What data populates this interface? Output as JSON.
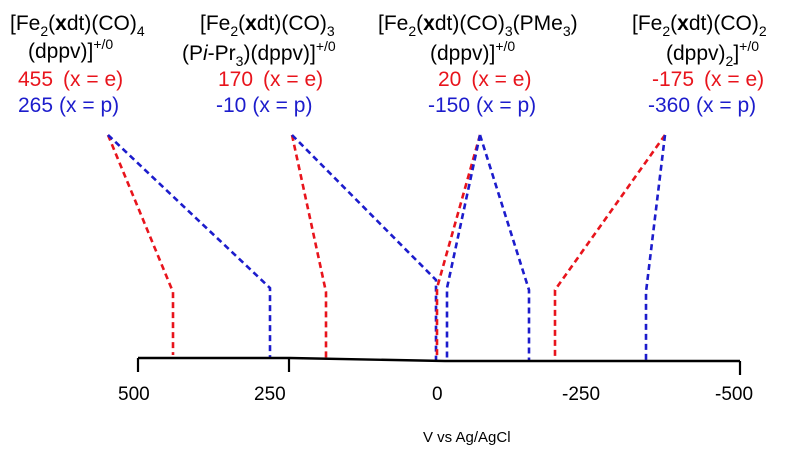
{
  "axis": {
    "label": "V vs Ag/AgCl",
    "ticks": [
      "500",
      "250",
      "0",
      "-250",
      "-500"
    ]
  },
  "colors": {
    "red": "#e8141c",
    "blue": "#1c1ccc",
    "axis": "#000000"
  },
  "complexes": [
    {
      "line1": {
        "pre": "[Fe",
        "sub1": "2",
        "mid1": "(",
        "bold": "x",
        "mid2": "dt)(CO)",
        "sub2": "4",
        "post": ""
      },
      "line2": {
        "text": "(dppv)]",
        "sup": "+/0"
      },
      "red": {
        "value": "455",
        "note": "(x = e)"
      },
      "blue": {
        "value": "265",
        "note": "(x = p)"
      }
    },
    {
      "line1": {
        "pre": "[Fe",
        "sub1": "2",
        "mid1": "(",
        "bold": "x",
        "mid2": "dt)(CO)",
        "sub2": "3",
        "post": ""
      },
      "line2": {
        "pre": "(P",
        "ital": "i",
        "mid": "-Pr",
        "sub": "3",
        "post": ")(dppv)]",
        "sup": "+/0"
      },
      "red": {
        "value": "170",
        "note": "(x = e)"
      },
      "blue": {
        "value": "-10",
        "note": "(x = p)"
      }
    },
    {
      "line1": {
        "pre": "[Fe",
        "sub1": "2",
        "mid1": "(",
        "bold": "x",
        "mid2": "dt)(CO)",
        "sub2": "3",
        "post": "(PMe",
        "sub3": "3",
        "post2": ")"
      },
      "line2": {
        "text": "(dppv)]",
        "sup": "+/0"
      },
      "red": {
        "value": "20",
        "note": "(x = e)"
      },
      "blue": {
        "value": "-150",
        "note": "(x = p)"
      }
    },
    {
      "line1": {
        "pre": "[Fe",
        "sub1": "2",
        "mid1": "(",
        "bold": "x",
        "mid2": "dt)(CO)",
        "sub2": "2",
        "post": ""
      },
      "line2": {
        "pre": "(dppv)",
        "sub": "2",
        "post": "]",
        "sup": "+/0"
      },
      "red": {
        "value": "-175",
        "note": "(x = e)"
      },
      "blue": {
        "value": "-360",
        "note": "(x = p)"
      }
    }
  ]
}
